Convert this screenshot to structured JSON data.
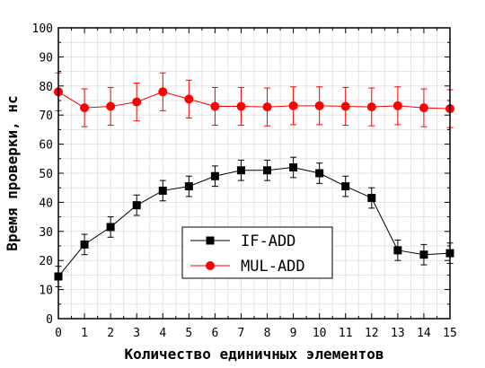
{
  "chart_data": {
    "type": "line",
    "title": "",
    "xlabel": "Количество единичных элементов",
    "ylabel": "Время проверки, нс",
    "xlim": [
      0,
      15
    ],
    "ylim": [
      0,
      100
    ],
    "grid": true,
    "legend_position": "center-right",
    "x": [
      0,
      1,
      2,
      3,
      4,
      5,
      6,
      7,
      8,
      9,
      10,
      11,
      12,
      13,
      14,
      15
    ],
    "x_ticks": [
      "0",
      "1",
      "2",
      "3",
      "4",
      "5",
      "6",
      "7",
      "8",
      "9",
      "10",
      "11",
      "12",
      "13",
      "14",
      "15"
    ],
    "y_ticks": [
      "0",
      "10",
      "20",
      "30",
      "40",
      "50",
      "60",
      "70",
      "80",
      "90",
      "100"
    ],
    "series": [
      {
        "name": "IF-ADD",
        "marker": "square",
        "color": "#000000",
        "line_color": "#000000",
        "values": [
          14.5,
          25.5,
          31.5,
          39,
          44,
          45.5,
          49,
          51,
          51,
          52,
          50,
          45.5,
          41.5,
          23.5,
          22,
          22.5
        ],
        "error": [
          3.5,
          3.5,
          3.5,
          3.5,
          3.5,
          3.5,
          3.5,
          3.5,
          3.5,
          3.5,
          3.5,
          3.5,
          3.5,
          3.5,
          3.5,
          3.5
        ]
      },
      {
        "name": "MUL-ADD",
        "marker": "circle",
        "color": "#ff0000",
        "line_color": "#ff0000",
        "values": [
          78,
          72.5,
          73,
          74.5,
          78,
          75.5,
          73,
          73,
          72.8,
          73.2,
          73.2,
          73,
          72.8,
          73.2,
          72.5,
          72.2
        ],
        "error": [
          6.5,
          6.5,
          6.5,
          6.5,
          6.5,
          6.5,
          6.5,
          6.5,
          6.5,
          6.5,
          6.5,
          6.5,
          6.5,
          6.5,
          6.5,
          6.5
        ]
      }
    ]
  }
}
